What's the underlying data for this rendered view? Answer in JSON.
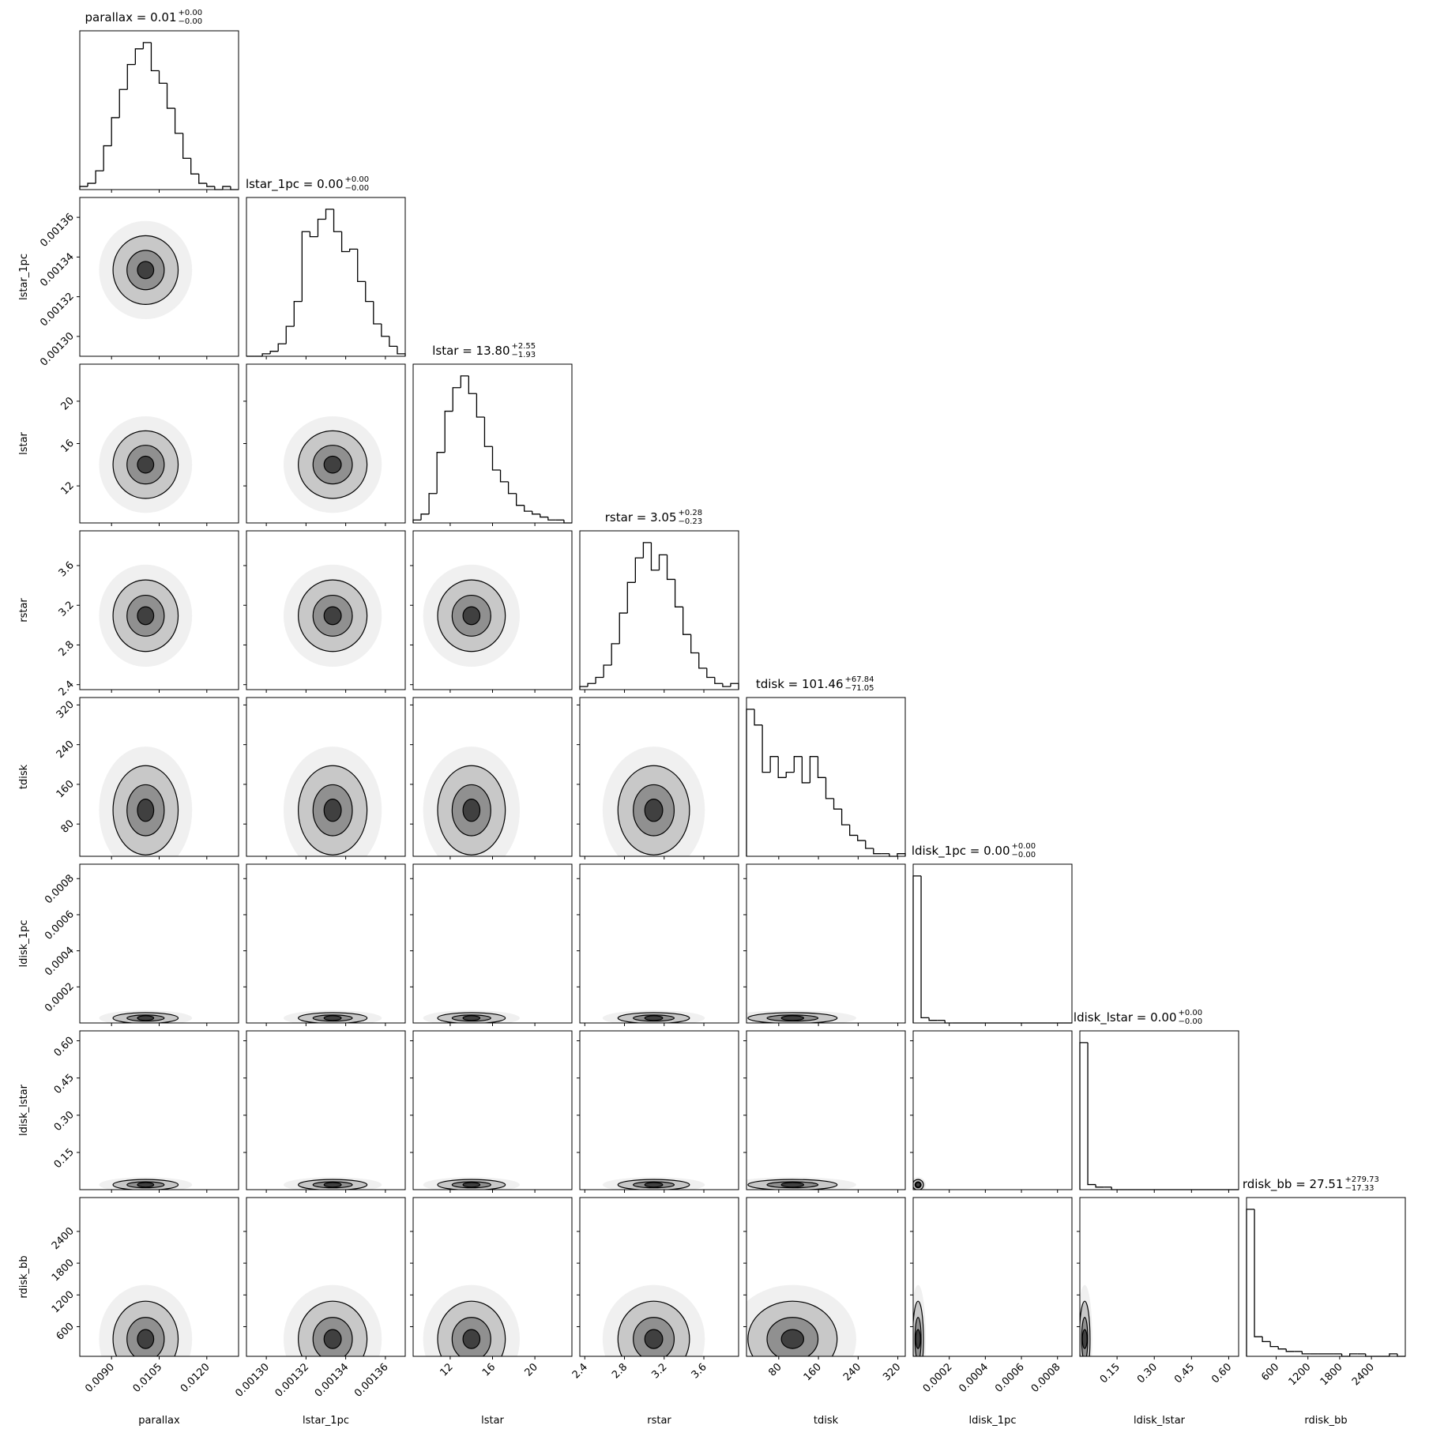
{
  "chart_data": {
    "type": "corner",
    "parameters": [
      {
        "name": "parallax",
        "title": "parallax = 0.01",
        "err_plus": "+0.00",
        "err_minus": "−0.00",
        "lim": [
          0.008,
          0.013
        ],
        "ticks": [
          {
            "value": 0.009,
            "label": "0.0090"
          },
          0.0105,
          {
            "value": 0.012,
            "label": "0.0120"
          }
        ],
        "bins": [
          0.008,
          0.00825,
          0.0085,
          0.00875,
          0.009,
          0.00925,
          0.0095,
          0.00975,
          0.01,
          0.01025,
          0.0105,
          0.01075,
          0.011,
          0.01125,
          0.0115,
          0.01175,
          0.012,
          0.01225,
          0.0125,
          0.01275,
          0.013
        ],
        "values": [
          1,
          2,
          6,
          14,
          23,
          32,
          40,
          45,
          47,
          38,
          34,
          26,
          18,
          10,
          5,
          2,
          1,
          0,
          1,
          0
        ]
      },
      {
        "name": "lstar_1pc",
        "title": "lstar_1pc = 0.00",
        "err_plus": "+0.00",
        "err_minus": "−0.00",
        "lim": [
          0.00129,
          0.00137
        ],
        "ticks": [
          {
            "value": 0.0013,
            "label": "0.00130"
          },
          {
            "value": 0.00132,
            "label": "0.00132"
          },
          {
            "value": 0.00134,
            "label": "0.00134"
          },
          {
            "value": 0.00136,
            "label": "0.00136"
          }
        ],
        "bins": [
          0.00129,
          0.001294,
          0.001298,
          0.001302,
          0.001306,
          0.00131,
          0.001314,
          0.001318,
          0.001322,
          0.001326,
          0.00133,
          0.001334,
          0.001338,
          0.001342,
          0.001346,
          0.00135,
          0.001354,
          0.001358,
          0.001362,
          0.001366,
          0.00137
        ],
        "values": [
          0,
          0,
          1,
          2,
          5,
          12,
          22,
          50,
          48,
          55,
          59,
          50,
          42,
          43,
          30,
          22,
          13,
          8,
          4,
          1
        ]
      },
      {
        "name": "lstar",
        "title": "lstar = 13.80",
        "err_plus": "+2.55",
        "err_minus": "−1.93",
        "lim": [
          8.5,
          23.5
        ],
        "ticks": [
          12,
          16,
          20
        ],
        "bins": [
          8.5,
          9.25,
          10,
          10.75,
          11.5,
          12.25,
          13,
          13.75,
          14.5,
          15.25,
          16,
          16.75,
          17.5,
          18.25,
          19,
          19.75,
          20.5,
          21.25,
          22,
          22.75,
          23.5
        ],
        "values": [
          1,
          3,
          10,
          24,
          38,
          46,
          50,
          44,
          36,
          26,
          18,
          14,
          10,
          6,
          4,
          3,
          2,
          1,
          1,
          0
        ]
      },
      {
        "name": "rstar",
        "title": "rstar = 3.05",
        "err_plus": "+0.28",
        "err_minus": "−0.23",
        "lim": [
          2.35,
          3.95
        ],
        "ticks": [
          2.4,
          2.8,
          3.2,
          3.6
        ],
        "bins": [
          2.35,
          2.43,
          2.51,
          2.59,
          2.67,
          2.75,
          2.83,
          2.91,
          2.99,
          3.07,
          3.15,
          3.23,
          3.31,
          3.39,
          3.47,
          3.55,
          3.63,
          3.71,
          3.79,
          3.87,
          3.95
        ],
        "values": [
          1,
          2,
          4,
          8,
          15,
          25,
          35,
          43,
          48,
          39,
          44,
          36,
          27,
          18,
          12,
          7,
          4,
          2,
          1,
          2
        ]
      },
      {
        "name": "tdisk",
        "title": "tdisk = 101.46",
        "err_plus": "+67.84",
        "err_minus": "−71.05",
        "lim": [
          15,
          335
        ],
        "ticks": [
          80,
          160,
          240,
          320
        ],
        "bins": [
          15,
          31,
          47,
          63,
          79,
          95,
          111,
          127,
          143,
          159,
          175,
          191,
          207,
          223,
          239,
          255,
          271,
          287,
          303,
          319,
          335
        ],
        "values": [
          56,
          50,
          32,
          38,
          30,
          32,
          38,
          28,
          38,
          30,
          22,
          18,
          12,
          8,
          6,
          3,
          1,
          1,
          0,
          1
        ]
      },
      {
        "name": "ldisk_1pc",
        "title": "ldisk_1pc = 0.00",
        "err_plus": "+0.00",
        "err_minus": "−0.00",
        "lim": [
          0,
          0.00088
        ],
        "ticks": [
          0.0002,
          0.0004,
          0.0006,
          0.0008
        ],
        "bins": [
          0,
          4.4e-05,
          8.8e-05,
          0.000132,
          0.000176,
          0.00022,
          0.000264,
          0.000308,
          0.000352,
          0.000396,
          0.00044,
          0.000484,
          0.000528,
          0.000572,
          0.000616,
          0.00066,
          0.000704,
          0.000748,
          0.000792,
          0.000836,
          0.00088
        ],
        "values": [
          56,
          2,
          1,
          1,
          0,
          0,
          0,
          0,
          0,
          0,
          0,
          0,
          0,
          0,
          0,
          0,
          0,
          0,
          0,
          0
        ]
      },
      {
        "name": "ldisk_lstar",
        "title": "ldisk_lstar = 0.00",
        "err_plus": "+0.00",
        "err_minus": "−0.00",
        "lim": [
          0,
          0.64
        ],
        "ticks": [
          0.15,
          {
            "value": 0.3,
            "label": "0.30"
          },
          0.45,
          {
            "value": 0.6,
            "label": "0.60"
          }
        ],
        "bins": [
          0,
          0.032,
          0.064,
          0.096,
          0.128,
          0.16,
          0.192,
          0.224,
          0.256,
          0.288,
          0.32,
          0.352,
          0.384,
          0.416,
          0.448,
          0.48,
          0.512,
          0.544,
          0.576,
          0.608,
          0.64
        ],
        "values": [
          58,
          2,
          1,
          1,
          0,
          0,
          0,
          0,
          0,
          0,
          0,
          0,
          0,
          0,
          0,
          0,
          0,
          0,
          0,
          0
        ]
      },
      {
        "name": "rdisk_bb",
        "title": "rdisk_bb = 27.51",
        "err_plus": "+279.73",
        "err_minus": "−17.33",
        "lim": [
          40,
          3040
        ],
        "ticks": [
          600,
          1200,
          1800,
          2400
        ],
        "bins": [
          40,
          190,
          340,
          490,
          640,
          790,
          940,
          1090,
          1240,
          1390,
          1540,
          1690,
          1840,
          1990,
          2140,
          2290,
          2440,
          2590,
          2740,
          2890,
          3040
        ],
        "values": [
          60,
          8,
          6,
          4,
          3,
          2,
          2,
          1,
          1,
          1,
          1,
          1,
          0,
          1,
          1,
          0,
          0,
          0,
          1,
          0
        ]
      }
    ]
  }
}
